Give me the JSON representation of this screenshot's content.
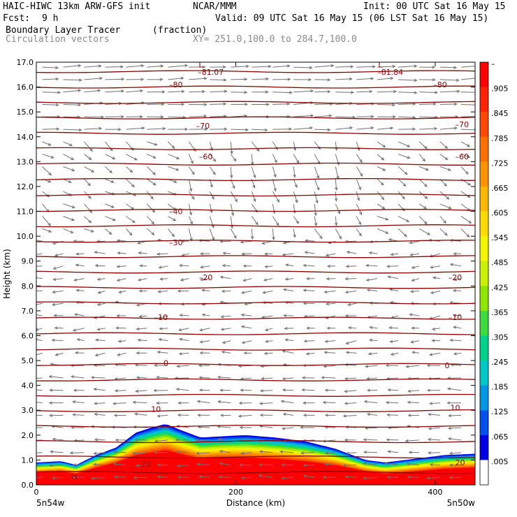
{
  "header": {
    "model": "HAIC-HIWC 13km ARW-GFS init",
    "org": "NCAR/MMM",
    "init": "Init: 00 UTC Sat 16 May 15",
    "fcst_label": "Fcst:",
    "fcst_value": "9 h",
    "valid": "Valid: 09 UTC Sat 16 May 15 (06 LST Sat 16 May 15)",
    "field1": "Boundary Layer Tracer",
    "field1_units": "(fraction)",
    "field2": "Circulation vectors",
    "xsec": "XY= 251.0,100.0 to 284.7,100.0"
  },
  "chart_data": {
    "type": "heatmap",
    "xlabel": "Distance (km)",
    "ylabel": "Height (km)",
    "xlim": [
      0,
      440
    ],
    "ylim": [
      0,
      17
    ],
    "x_ticks": [
      "0",
      "200",
      "400"
    ],
    "x_tick_values": [
      0,
      200,
      400
    ],
    "y_ticks": [
      "0.0",
      "1.0",
      "2.0",
      "3.0",
      "4.0",
      "5.0",
      "6.0",
      "7.0",
      "8.0",
      "9.0",
      "10.0",
      "11.0",
      "12.0",
      "13.0",
      "14.0",
      "15.0",
      "16.0",
      "17.0"
    ],
    "x_end_labels": {
      "left": "5n54w",
      "right": "5n50w"
    },
    "colorbar": {
      "labels": [
        "–",
        ".905",
        ".845",
        ".785",
        ".725",
        ".665",
        ".605",
        ".545",
        ".485",
        ".425",
        ".365",
        ".305",
        ".245",
        ".185",
        ".125",
        ".065",
        ".005"
      ],
      "colors": [
        "#ff0000",
        "#ff2400",
        "#ff4800",
        "#ff7000",
        "#ff9400",
        "#ffb800",
        "#ffdc00",
        "#f5f500",
        "#c8f000",
        "#8ce600",
        "#3cdc3c",
        "#00d28c",
        "#00c8c8",
        "#0096e6",
        "#0050f0",
        "#0000e6",
        "#ffffff"
      ]
    },
    "tracer_top": {
      "x": [
        0,
        25,
        40,
        60,
        80,
        100,
        115,
        130,
        145,
        165,
        185,
        210,
        240,
        270,
        300,
        330,
        350,
        380,
        410,
        440
      ],
      "y": [
        0.9,
        0.95,
        0.8,
        1.2,
        1.5,
        2.1,
        2.3,
        2.45,
        2.2,
        1.9,
        1.95,
        2.0,
        1.9,
        1.75,
        1.45,
        1.0,
        0.9,
        1.05,
        1.2,
        1.25
      ]
    },
    "tracer_red_top": {
      "x": [
        0,
        25,
        40,
        60,
        80,
        100,
        115,
        130,
        145,
        165,
        185,
        210,
        240,
        270,
        300,
        330,
        350,
        380,
        410,
        440
      ],
      "y": [
        0.5,
        0.55,
        0.45,
        0.7,
        0.9,
        1.2,
        1.3,
        1.4,
        1.25,
        1.05,
        1.1,
        1.1,
        1.05,
        0.95,
        0.8,
        0.55,
        0.45,
        0.55,
        0.65,
        0.7
      ]
    },
    "contours": [
      {
        "label": "–81.07",
        "values": []
      },
      {
        "label": "–81.84",
        "values": []
      },
      {
        "label": "–80",
        "height": 16.1
      },
      {
        "label": "–70",
        "height": 14.4
      },
      {
        "label": "–60",
        "height": 13.0
      },
      {
        "label": "–40",
        "height": 10.9
      },
      {
        "label": "–30",
        "height": 9.7
      },
      {
        "label": "–20",
        "height": 8.3
      },
      {
        "label": "–10",
        "height": 6.7
      },
      {
        "label": "0",
        "height": 4.95
      },
      {
        "label": "10",
        "height": 3.1
      },
      {
        "label": "20",
        "height": 0.9
      }
    ],
    "contour_labels": [
      {
        "text": "L",
        "x": 165,
        "y": 16.9
      },
      {
        "text": "–81.07",
        "x": 175,
        "y": 16.6
      },
      {
        "text": "L",
        "x": 345,
        "y": 16.9
      },
      {
        "text": "–81.84",
        "x": 355,
        "y": 16.6
      },
      {
        "text": "–80",
        "x": 140,
        "y": 16.1
      },
      {
        "text": "–80",
        "x": 405,
        "y": 16.1
      },
      {
        "text": "–70",
        "x": 167,
        "y": 14.45
      },
      {
        "text": "–70",
        "x": 427,
        "y": 14.5
      },
      {
        "text": "–60",
        "x": 170,
        "y": 13.2
      },
      {
        "text": "–60",
        "x": 427,
        "y": 13.2
      },
      {
        "text": "–40",
        "x": 140,
        "y": 11.0
      },
      {
        "text": "–30",
        "x": 140,
        "y": 9.75
      },
      {
        "text": "–20",
        "x": 170,
        "y": 8.35
      },
      {
        "text": "–20",
        "x": 420,
        "y": 8.35
      },
      {
        "text": "–10",
        "x": 125,
        "y": 6.75
      },
      {
        "text": "–10",
        "x": 420,
        "y": 6.75
      },
      {
        "text": "0",
        "x": 130,
        "y": 4.9
      },
      {
        "text": "0",
        "x": 412,
        "y": 4.8
      },
      {
        "text": "10",
        "x": 120,
        "y": 3.05
      },
      {
        "text": "10",
        "x": 420,
        "y": 3.1
      },
      {
        "text": "20",
        "x": 110,
        "y": 0.85
      },
      {
        "text": "20",
        "x": 425,
        "y": 0.9
      },
      {
        "text": "H",
        "x": 38,
        "y": 0.35
      }
    ]
  }
}
